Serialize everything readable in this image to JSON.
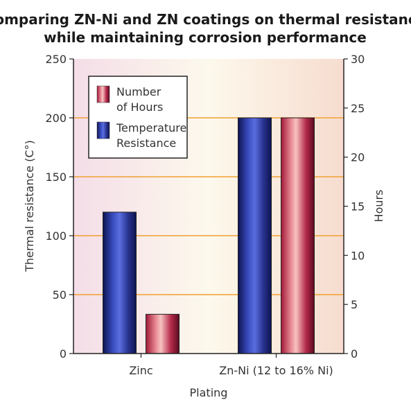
{
  "chart_data": {
    "type": "bar",
    "title_lines": [
      "Comparing ZN-Ni and ZN coatings on thermal resistance",
      "while maintaining corrosion performance"
    ],
    "xlabel": "Plating",
    "ylabel_left": "Thermal resistance (C°)",
    "ylabel_right": "Hours",
    "categories": [
      "Zinc",
      "Zn-Ni (12 to 16% Ni)"
    ],
    "ylim_left": [
      0,
      250
    ],
    "yticks_left": [
      "0",
      "50",
      "100",
      "150",
      "200",
      "250"
    ],
    "ylim_right": [
      0,
      30
    ],
    "yticks_right": [
      "0",
      "5",
      "10",
      "15",
      "20",
      "25",
      "30"
    ],
    "grid": "horizontal, orange, every 50 °C",
    "legend_placement": "top-left",
    "series": [
      {
        "name": "Temperature Resistance",
        "legend_lines": [
          "Temperature",
          "Resistance"
        ],
        "axis": "left",
        "values": [
          120,
          200
        ],
        "color": "#2b3a9c"
      },
      {
        "name": "Number of Hours",
        "legend_lines": [
          "Number",
          "of Hours"
        ],
        "axis": "right",
        "values": [
          4,
          24
        ],
        "color": "#b52a4a"
      }
    ],
    "colors": {
      "grid": "#f0a030",
      "bg_left": "#f4dde8",
      "bg_mid": "#fdf8ee",
      "bg_right": "#f6dccf"
    }
  }
}
